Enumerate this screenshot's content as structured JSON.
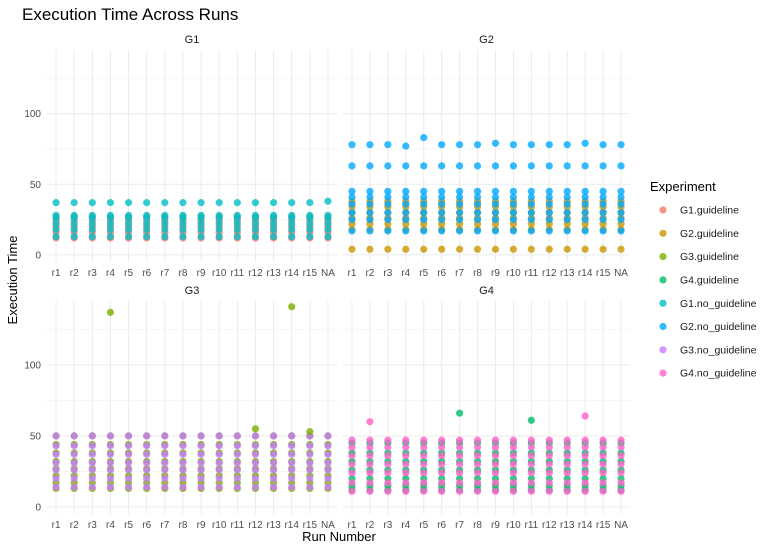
{
  "chart_data": {
    "type": "scatter",
    "title": "Execution Time Across Runs",
    "xlabel": "Run Number",
    "ylabel": "Execution Time",
    "categories": [
      "r1",
      "r2",
      "r3",
      "r4",
      "r5",
      "r6",
      "r7",
      "r8",
      "r9",
      "r10",
      "r11",
      "r12",
      "r13",
      "r14",
      "r15",
      "NA"
    ],
    "ylim": [
      -5,
      145
    ],
    "yticks": [
      0,
      50,
      100
    ],
    "legend": {
      "title": "Experiment",
      "placement": "right",
      "entries": [
        "G1.guideline",
        "G2.guideline",
        "G3.guideline",
        "G4.guideline",
        "G1.no_guideline",
        "G2.no_guideline",
        "G3.no_guideline",
        "G4.no_guideline"
      ]
    },
    "colors": {
      "G1.guideline": "#F8766D",
      "G2.guideline": "#CD9600",
      "G3.guideline": "#7CAE00",
      "G4.guideline": "#00BE67",
      "G1.no_guideline": "#00BFC4",
      "G2.no_guideline": "#00A9FF",
      "G3.no_guideline": "#C77CFF",
      "G4.no_guideline": "#FF61CC"
    },
    "panels": [
      {
        "name": "G1",
        "series": [
          {
            "name": "G1.guideline",
            "values_per_run": [
              12,
              16,
              20,
              24,
              27
            ]
          },
          {
            "name": "G1.no_guideline",
            "values_per_run": [
              13,
              18,
              22,
              26,
              28
            ],
            "peaks": [
              37,
              37,
              37,
              37,
              37,
              37,
              37,
              37,
              37,
              37,
              37,
              37,
              37,
              37,
              37,
              38
            ]
          }
        ]
      },
      {
        "name": "G2",
        "series": [
          {
            "name": "G2.guideline",
            "values_per_run": [
              4,
              18,
              22,
              26,
              30,
              34,
              38
            ]
          },
          {
            "name": "G2.no_guideline",
            "values_per_run": [
              17,
              25,
              30,
              36,
              41,
              45,
              63
            ],
            "peaks": [
              78,
              78,
              78,
              77,
              83,
              78,
              78,
              78,
              79,
              78,
              78,
              78,
              78,
              79,
              78,
              78
            ]
          }
        ]
      },
      {
        "name": "G3",
        "series": [
          {
            "name": "G3.guideline",
            "values_per_run": [
              13,
              17,
              22,
              27,
              32,
              38,
              44,
              50
            ]
          },
          {
            "name": "G3.no_guideline",
            "values_per_run": [
              14,
              20,
              26,
              31,
              37,
              43,
              50
            ]
          },
          {
            "name": "G3.guideline outliers",
            "points": [
              {
                "x": "r4",
                "y": 137
              },
              {
                "x": "r14",
                "y": 141
              },
              {
                "x": "r12",
                "y": 55
              },
              {
                "x": "r15",
                "y": 53
              }
            ]
          }
        ]
      },
      {
        "name": "G4",
        "series": [
          {
            "name": "G4.guideline",
            "values_per_run": [
              12,
              15,
              20,
              26,
              32,
              38,
              45
            ]
          },
          {
            "name": "G4.no_guideline",
            "values_per_run": [
              11,
              17,
              24,
              30,
              36,
              42,
              47
            ]
          },
          {
            "name": "G4 outliers",
            "points": [
              {
                "x": "r7",
                "y": 66,
                "series": "G4.guideline"
              },
              {
                "x": "r11",
                "y": 61,
                "series": "G4.guideline"
              },
              {
                "x": "r2",
                "y": 60,
                "series": "G4.no_guideline"
              },
              {
                "x": "r14",
                "y": 64,
                "series": "G4.no_guideline"
              }
            ]
          }
        ]
      }
    ]
  }
}
